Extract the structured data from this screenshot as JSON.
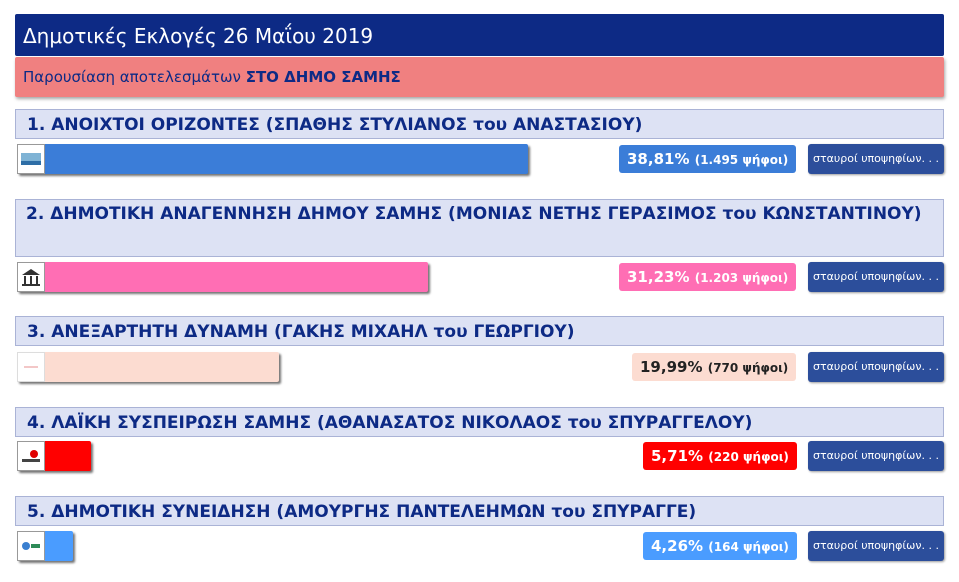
{
  "header": {
    "title": "Δημοτικές Εκλογές 26 Μαΐου 2019",
    "subtitle_prefix": "Παρουσίαση αποτελεσμάτων ",
    "subtitle_bold": "ΣΤΟ ΔΗΜΟ ΣΑΜΗΣ"
  },
  "button_label": "σταυροί υποψηφίων. . .",
  "parties": [
    {
      "name": "1. ΑΝΟΙΧΤΟΙ ΟΡΙΖΟΝΤΕΣ (ΣΠΑΘΗΣ ΣΤΥΛΙΑΝΟΣ του ΑΝΑΣΤΑΣΙΟΥ)",
      "percent": "38,81%",
      "votes": "(1.495 ψήφοι)",
      "share": 0.3881,
      "color": "#3b7dd8",
      "pct_bg": "#3b7dd8",
      "pct_color": "#ffffff"
    },
    {
      "name": "2. ΔΗΜΟΤΙΚΗ ΑΝΑΓΕΝΝΗΣΗ ΔΗΜΟΥ ΣΑΜΗΣ (ΜΟΝΙΑΣ ΝΕΤΗΣ ΓΕΡΑΣΙΜΟΣ του ΚΩΝΣΤΑΝΤΙΝΟΥ)",
      "percent": "31,23%",
      "votes": "(1.203 ψήφοι)",
      "share": 0.3123,
      "color": "#ff6eb4",
      "pct_bg": "#ff6eb4",
      "pct_color": "#ffffff"
    },
    {
      "name": "3. ΑΝΕΞΑΡΤΗΤΗ ΔΥΝΑΜΗ (ΓΑΚΗΣ ΜΙΧΑΗΛ του ΓΕΩΡΓΙΟΥ)",
      "percent": "19,99%",
      "votes": "(770 ψήφοι)",
      "share": 0.1999,
      "color": "#fcdcd1",
      "pct_bg": "#fcdcd1",
      "pct_color": "#222222"
    },
    {
      "name": "4. ΛΑΪΚΗ ΣΥΣΠΕΙΡΩΣΗ ΣΑΜΗΣ (ΑΘΑΝΑΣΑΤΟΣ ΝΙΚΟΛΑΟΣ του ΣΠΥΡΑΓΓΕΛΟΥ)",
      "percent": "5,71%",
      "votes": "(220 ψήφοι)",
      "share": 0.0571,
      "color": "#ff0000",
      "pct_bg": "#ff0000",
      "pct_color": "#ffffff"
    },
    {
      "name": "5. ΔΗΜΟΤΙΚΗ ΣΥΝΕΙΔΗΣΗ (ΑΜΟΥΡΓΗΣ ΠΑΝΤΕΛΕΗΜΩΝ του ΣΠΥΡΑΓΓΕ)",
      "percent": "4,26%",
      "votes": "(164 ψήφοι)",
      "share": 0.0426,
      "color": "#4a9cff",
      "pct_bg": "#4a9cff",
      "pct_color": "#ffffff"
    }
  ]
}
